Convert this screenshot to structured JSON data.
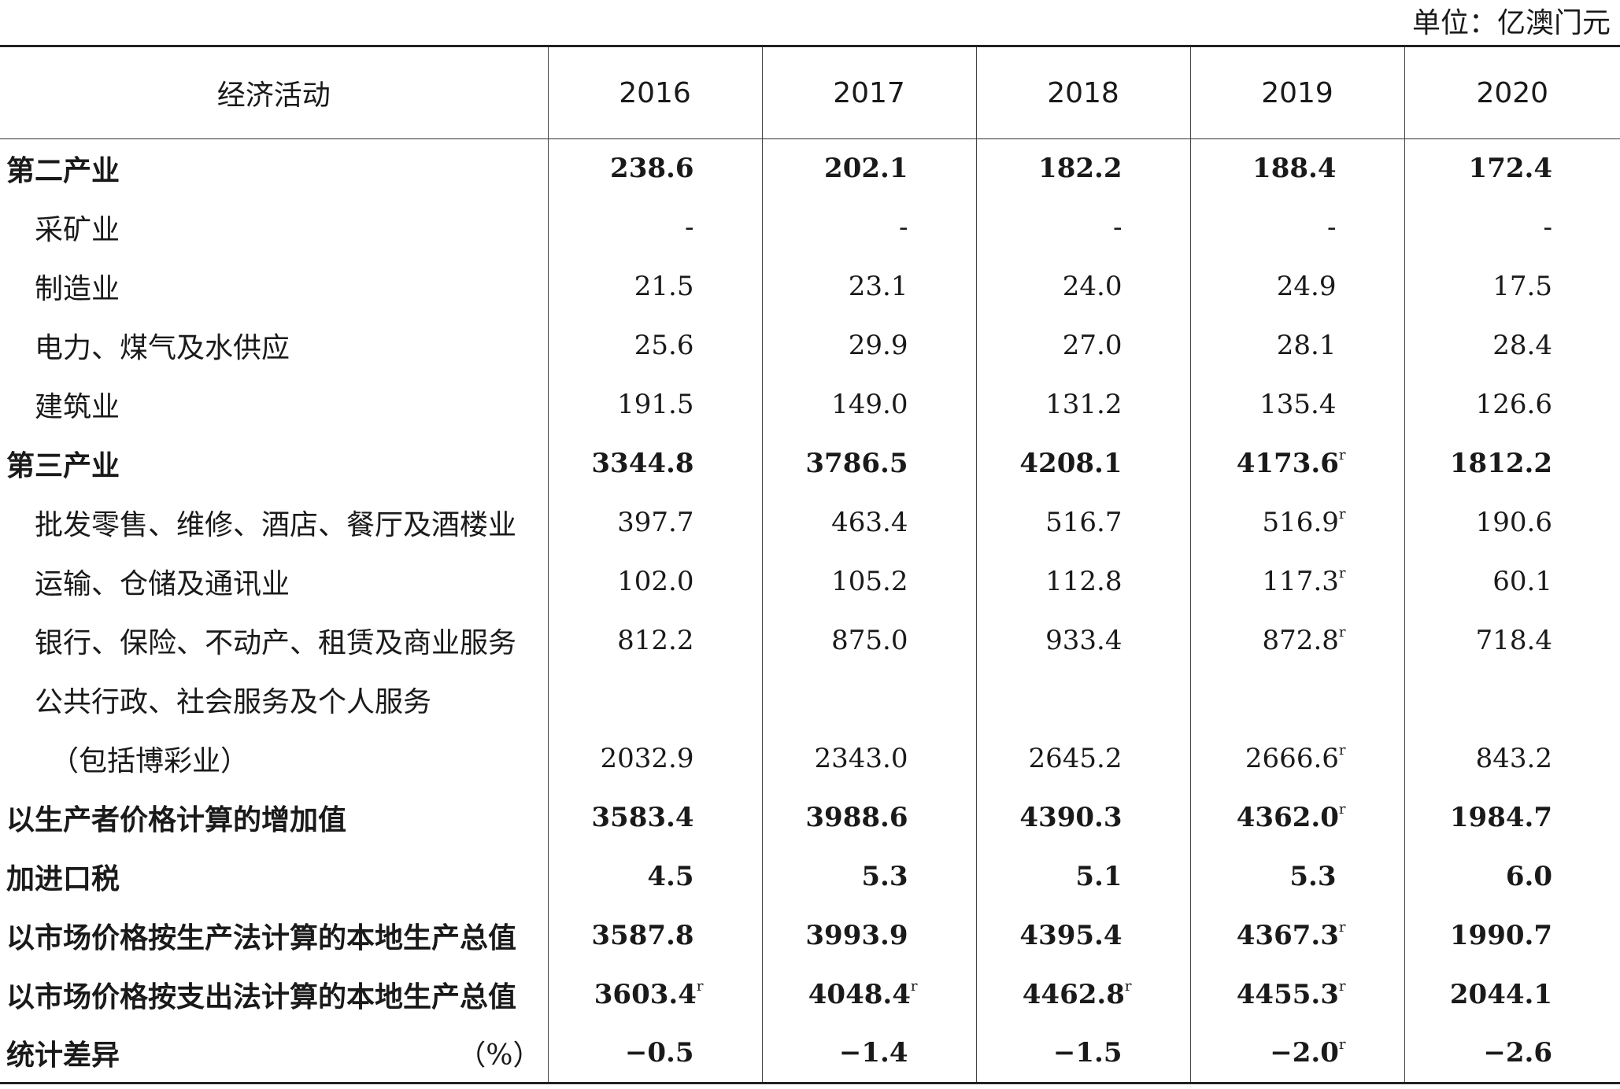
{
  "unit": "单位：亿澳门元",
  "header": {
    "activity": "经济活动",
    "years": [
      "2016",
      "2017",
      "2018",
      "2019",
      "2020"
    ]
  },
  "rows": [
    {
      "label": "第二产业",
      "bold": true,
      "indent": 0,
      "v": [
        "238.6",
        "202.1",
        "182.2",
        "188.4",
        "172.4"
      ],
      "r": [
        false,
        false,
        false,
        false,
        false
      ]
    },
    {
      "label": "采矿业",
      "bold": false,
      "indent": 1,
      "v": [
        "-",
        "-",
        "-",
        "-",
        "-"
      ],
      "r": [
        false,
        false,
        false,
        false,
        false
      ]
    },
    {
      "label": "制造业",
      "bold": false,
      "indent": 1,
      "v": [
        "21.5",
        "23.1",
        "24.0",
        "24.9",
        "17.5"
      ],
      "r": [
        false,
        false,
        false,
        false,
        false
      ]
    },
    {
      "label": "电力、煤气及水供应",
      "bold": false,
      "indent": 1,
      "v": [
        "25.6",
        "29.9",
        "27.0",
        "28.1",
        "28.4"
      ],
      "r": [
        false,
        false,
        false,
        false,
        false
      ]
    },
    {
      "label": "建筑业",
      "bold": false,
      "indent": 1,
      "v": [
        "191.5",
        "149.0",
        "131.2",
        "135.4",
        "126.6"
      ],
      "r": [
        false,
        false,
        false,
        false,
        false
      ]
    },
    {
      "label": "第三产业",
      "bold": true,
      "indent": 0,
      "v": [
        "3344.8",
        "3786.5",
        "4208.1",
        "4173.6",
        "1812.2"
      ],
      "r": [
        false,
        false,
        false,
        true,
        false
      ]
    },
    {
      "label": "批发零售、维修、酒店、餐厅及酒楼业",
      "bold": false,
      "indent": 1,
      "v": [
        "397.7",
        "463.4",
        "516.7",
        "516.9",
        "190.6"
      ],
      "r": [
        false,
        false,
        false,
        true,
        false
      ]
    },
    {
      "label": "运输、仓储及通讯业",
      "bold": false,
      "indent": 1,
      "v": [
        "102.0",
        "105.2",
        "112.8",
        "117.3",
        "60.1"
      ],
      "r": [
        false,
        false,
        false,
        true,
        false
      ]
    },
    {
      "label": "银行、保险、不动产、租赁及商业服务",
      "bold": false,
      "indent": 1,
      "v": [
        "812.2",
        "875.0",
        "933.4",
        "872.8",
        "718.4"
      ],
      "r": [
        false,
        false,
        false,
        true,
        false
      ]
    },
    {
      "label": "公共行政、社会服务及个人服务",
      "bold": false,
      "indent": 1,
      "v": [
        "",
        "",
        "",
        "",
        ""
      ],
      "r": [
        false,
        false,
        false,
        false,
        false
      ]
    },
    {
      "label": "（包括博彩业）",
      "bold": false,
      "indent": 2,
      "v": [
        "2032.9",
        "2343.0",
        "2645.2",
        "2666.6",
        "843.2"
      ],
      "r": [
        false,
        false,
        false,
        true,
        false
      ]
    },
    {
      "label": "以生产者价格计算的增加值",
      "bold": true,
      "indent": 0,
      "v": [
        "3583.4",
        "3988.6",
        "4390.3",
        "4362.0",
        "1984.7"
      ],
      "r": [
        false,
        false,
        false,
        true,
        false
      ]
    },
    {
      "label": "加进口税",
      "bold": true,
      "indent": 0,
      "v": [
        "4.5",
        "5.3",
        "5.1",
        "5.3",
        "6.0"
      ],
      "r": [
        false,
        false,
        false,
        false,
        false
      ]
    },
    {
      "label": "以市场价格按生产法计算的本地生产总值",
      "bold": true,
      "indent": 0,
      "v": [
        "3587.8",
        "3993.9",
        "4395.4",
        "4367.3",
        "1990.7"
      ],
      "r": [
        false,
        false,
        false,
        true,
        false
      ]
    },
    {
      "label": "以市场价格按支出法计算的本地生产总值",
      "bold": true,
      "indent": 0,
      "v": [
        "3603.4",
        "4048.4",
        "4462.8",
        "4455.3",
        "2044.1"
      ],
      "r": [
        true,
        true,
        true,
        true,
        false
      ]
    },
    {
      "label": "统计差异",
      "suffix": "（%）",
      "bold": true,
      "indent": 0,
      "v": [
        "−0.5",
        "−1.4",
        "−1.5",
        "−2.0",
        "−2.6"
      ],
      "r": [
        false,
        false,
        false,
        true,
        false
      ]
    }
  ],
  "revised_mark": "r"
}
